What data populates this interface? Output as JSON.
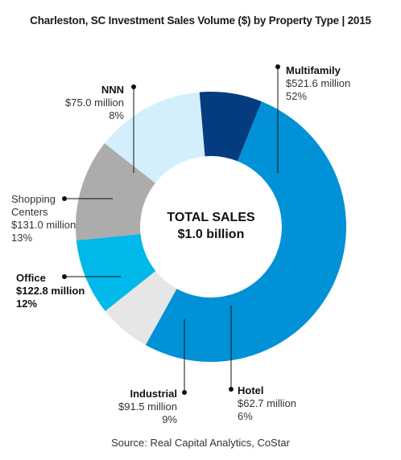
{
  "chart_data": {
    "type": "pie",
    "title": "Charleston, SC Investment Sales Volume ($) by Property Type | 2015",
    "center_label": "TOTAL SALES",
    "center_value": "$1.0 billion",
    "source": "Source: Real Capital Analytics, CoStar",
    "slices": [
      {
        "name": "Multifamily",
        "value": 521.6,
        "value_label": "$521.6 million",
        "pct_label": "52%",
        "color": "#0191d6"
      },
      {
        "name": "Hotel",
        "value": 62.7,
        "value_label": "$62.7 million",
        "pct_label": "6%",
        "color": "#e6e6e6"
      },
      {
        "name": "Industrial",
        "value": 91.5,
        "value_label": "$91.5 million",
        "pct_label": "9%",
        "color": "#00b8ea"
      },
      {
        "name": "Office",
        "value": 122.8,
        "value_label": "$122.8 million",
        "pct_label": "12%",
        "color": "#acacac"
      },
      {
        "name": "Shopping Centers",
        "value": 131.0,
        "value_label": "$131.0 million",
        "pct_label": "13%",
        "color": "#d3effc"
      },
      {
        "name": "NNN",
        "value": 75.0,
        "value_label": "$75.0 million",
        "pct_label": "8%",
        "color": "#043c7f"
      }
    ],
    "start_angle_deg": 22,
    "direction": "clockwise",
    "legend": "none"
  }
}
